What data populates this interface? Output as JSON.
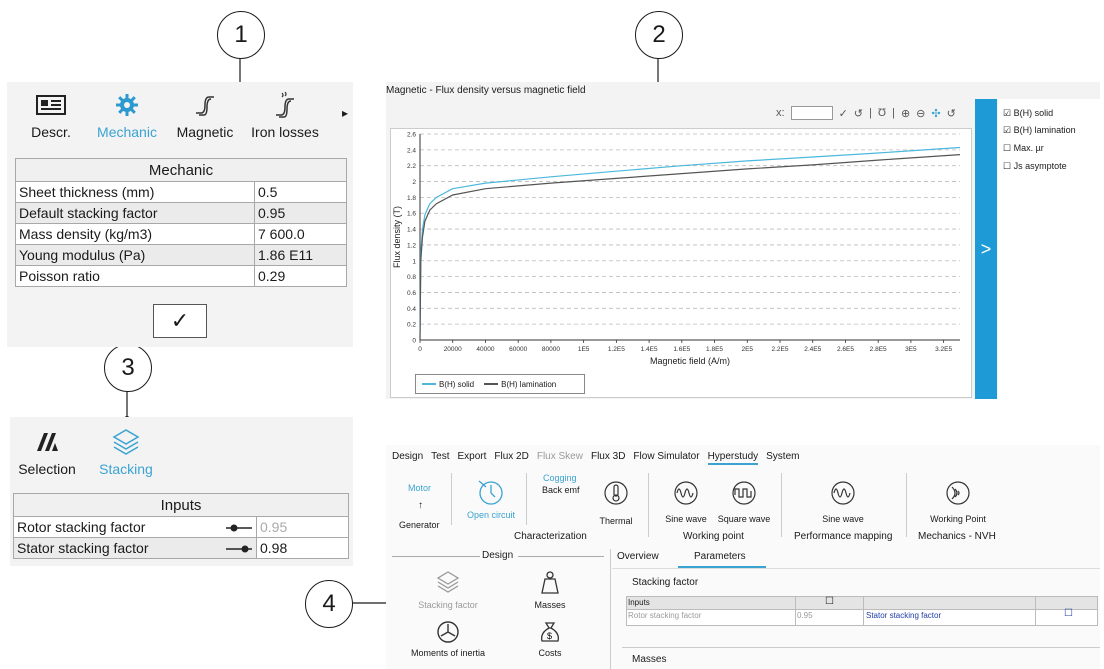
{
  "callouts": [
    "1",
    "2",
    "3",
    "4"
  ],
  "mech_panel": {
    "tabs": [
      {
        "label": "Descr.",
        "icon": "id-card-icon"
      },
      {
        "label": "Mechanic",
        "icon": "gear-icon"
      },
      {
        "label": "Magnetic",
        "icon": "bh-curve-icon"
      },
      {
        "label": "Iron losses",
        "icon": "iron-loss-curve-icon"
      }
    ],
    "more_arrow": "▸",
    "table_title": "Mechanic",
    "rows": [
      {
        "label": "Sheet thickness (mm)",
        "value": "0.5"
      },
      {
        "label": "Default stacking factor",
        "value": "0.95"
      },
      {
        "label": "Mass density (kg/m3)",
        "value": "7 600.0"
      },
      {
        "label": "Young modulus (Pa)",
        "value": "1.86 E11"
      },
      {
        "label": "Poisson ratio",
        "value": "0.29"
      }
    ],
    "confirm": "✓"
  },
  "stack_panel": {
    "tabs": [
      {
        "label": "Selection",
        "icon": "selection-icon"
      },
      {
        "label": "Stacking",
        "icon": "layers-icon"
      }
    ],
    "table_title": "Inputs",
    "rows": [
      {
        "label": "Rotor stacking factor",
        "value": "0.95"
      },
      {
        "label": "Stator stacking factor",
        "value": "0.98"
      }
    ]
  },
  "chart_panel": {
    "title": "Magnetic - Flux density versus magnetic field",
    "x_field_label": "x:",
    "toggle_arrow": ">",
    "checkboxes": [
      {
        "label": "B(H) solid",
        "checked": true
      },
      {
        "label": "B(H) lamination",
        "checked": true
      },
      {
        "label": "Max. µr",
        "checked": false
      },
      {
        "label": "Js asymptote",
        "checked": false
      }
    ]
  },
  "chart_data": {
    "type": "line",
    "xlabel": "Magnetic field (A/m)",
    "ylabel": "Flux density (T)",
    "xlim": [
      0,
      330000
    ],
    "ylim": [
      0,
      2.6
    ],
    "x_ticks": [
      "0",
      "20000",
      "40000",
      "60000",
      "80000",
      "1E5",
      "1.2E5",
      "1.4E5",
      "1.6E5",
      "1.8E5",
      "2E5",
      "2.2E5",
      "2.4E5",
      "2.6E5",
      "2.8E5",
      "3E5",
      "3.2E5"
    ],
    "y_ticks": [
      "0",
      "0.2",
      "0.4",
      "0.6",
      "0.8",
      "1",
      "1.2",
      "1.4",
      "1.6",
      "1.8",
      "2",
      "2.2",
      "2.4",
      "2.6"
    ],
    "grid": "horizontal dashed",
    "legend_position": "bottom-left",
    "series": [
      {
        "name": "B(H) solid",
        "color": "#4cb8dc",
        "x": [
          0,
          500,
          1500,
          3000,
          6000,
          10000,
          20000,
          40000,
          80000,
          120000,
          160000,
          200000,
          240000,
          280000,
          330000
        ],
        "y": [
          0,
          1.1,
          1.4,
          1.58,
          1.72,
          1.8,
          1.91,
          1.98,
          2.06,
          2.13,
          2.2,
          2.26,
          2.31,
          2.36,
          2.43
        ]
      },
      {
        "name": "B(H) lamination",
        "color": "#555555",
        "x": [
          0,
          500,
          1500,
          3000,
          6000,
          10000,
          20000,
          40000,
          80000,
          120000,
          160000,
          200000,
          240000,
          280000,
          330000
        ],
        "y": [
          0,
          1.0,
          1.3,
          1.5,
          1.64,
          1.72,
          1.83,
          1.91,
          1.98,
          2.04,
          2.1,
          2.16,
          2.21,
          2.27,
          2.34
        ]
      }
    ]
  },
  "ribbon": {
    "menu": [
      "Design",
      "Test",
      "Export",
      "Flux 2D",
      "Flux Skew",
      "Flux 3D",
      "Flow Simulator",
      "Hyperstudy",
      "System"
    ],
    "motor": "Motor",
    "generator": "Generator",
    "open_circuit": "Open circuit",
    "cogging": "Cogging",
    "back_emf": "Back emf",
    "thermal": "Thermal",
    "sine_wave": "Sine wave",
    "square_wave": "Square wave",
    "sine_wave_2": "Sine wave",
    "working_point_item": "Working Point",
    "groups": [
      "Characterization",
      "Working point",
      "Performance mapping",
      "Mechanics - NVH"
    ]
  },
  "design_panel": {
    "header": "Design",
    "items": [
      {
        "label": "Stacking factor",
        "icon": "layers-icon"
      },
      {
        "label": "Masses",
        "icon": "weight-icon"
      },
      {
        "label": "Moments of inertia",
        "icon": "rotation-icon"
      },
      {
        "label": "Costs",
        "icon": "money-bag-icon"
      }
    ]
  },
  "params_panel": {
    "tabs": [
      "Overview",
      "Parameters"
    ],
    "section": "Stacking factor",
    "inputs_header": "Inputs",
    "rotor_label": "Rotor stacking factor",
    "rotor_value": "0.95",
    "stator_label": "Stator stacking factor",
    "masses_label": "Masses"
  }
}
